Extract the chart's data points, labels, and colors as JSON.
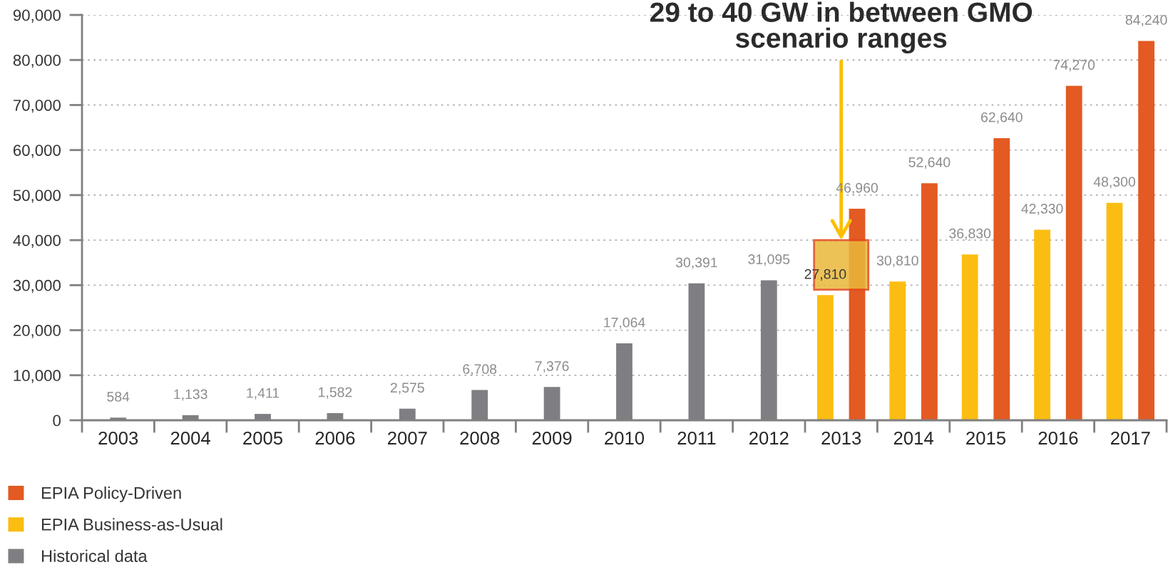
{
  "chart_data": {
    "type": "bar",
    "categories": [
      "2003",
      "2004",
      "2005",
      "2006",
      "2007",
      "2008",
      "2009",
      "2010",
      "2011",
      "2012",
      "2013",
      "2014",
      "2015",
      "2016",
      "2017"
    ],
    "series": [
      {
        "name": "Historical data",
        "color": "#7f7f83",
        "values": [
          584,
          1133,
          1411,
          1582,
          2575,
          6708,
          7376,
          17064,
          30391,
          31095,
          null,
          null,
          null,
          null,
          null
        ],
        "value_labels": [
          "584",
          "1,133",
          "1,411",
          "1,582",
          "2,575",
          "6,708",
          "7,376",
          "17,064",
          "30,391",
          "31,095",
          null,
          null,
          null,
          null,
          null
        ]
      },
      {
        "name": "EPIA Business-as-Usual",
        "color": "#fbbd11",
        "values": [
          null,
          null,
          null,
          null,
          null,
          null,
          null,
          null,
          null,
          null,
          27810,
          30810,
          36830,
          42330,
          48300
        ],
        "value_labels": [
          null,
          null,
          null,
          null,
          null,
          null,
          null,
          null,
          null,
          null,
          "27,810",
          "30,810",
          "36,830",
          "42,330",
          "48,300"
        ]
      },
      {
        "name": "EPIA Policy-Driven",
        "color": "#e35a22",
        "values": [
          null,
          null,
          null,
          null,
          null,
          null,
          null,
          null,
          null,
          null,
          46960,
          52640,
          62640,
          74270,
          84240
        ],
        "value_labels": [
          null,
          null,
          null,
          null,
          null,
          null,
          null,
          null,
          null,
          null,
          "46,960",
          "52,640",
          "62,640",
          "74,270",
          "84,240"
        ]
      }
    ],
    "ylim": [
      0,
      90000
    ],
    "yticks": [
      0,
      {
        "value": 10000,
        "label": "10,000"
      },
      {
        "value": 20000,
        "label": "20,000"
      },
      {
        "value": 30000,
        "label": "30,000"
      },
      {
        "value": 40000,
        "label": "40,000"
      },
      {
        "value": 50000,
        "label": "50,000"
      },
      {
        "value": 60000,
        "label": "60,000"
      },
      {
        "value": 70000,
        "label": "70,000"
      },
      {
        "value": 80000,
        "label": "80,000"
      },
      {
        "value": 90000,
        "label": "90,000"
      }
    ],
    "grid": "y",
    "legend": "bottom left",
    "annotations": [
      {
        "text": "29 to 40 GW in between GMO\nscenario ranges",
        "x": "2013",
        "y": 40000
      }
    ],
    "bands": [
      {
        "axis": "y",
        "from": 29000,
        "to": 40000,
        "color": "#e9b83a"
      }
    ]
  }
}
